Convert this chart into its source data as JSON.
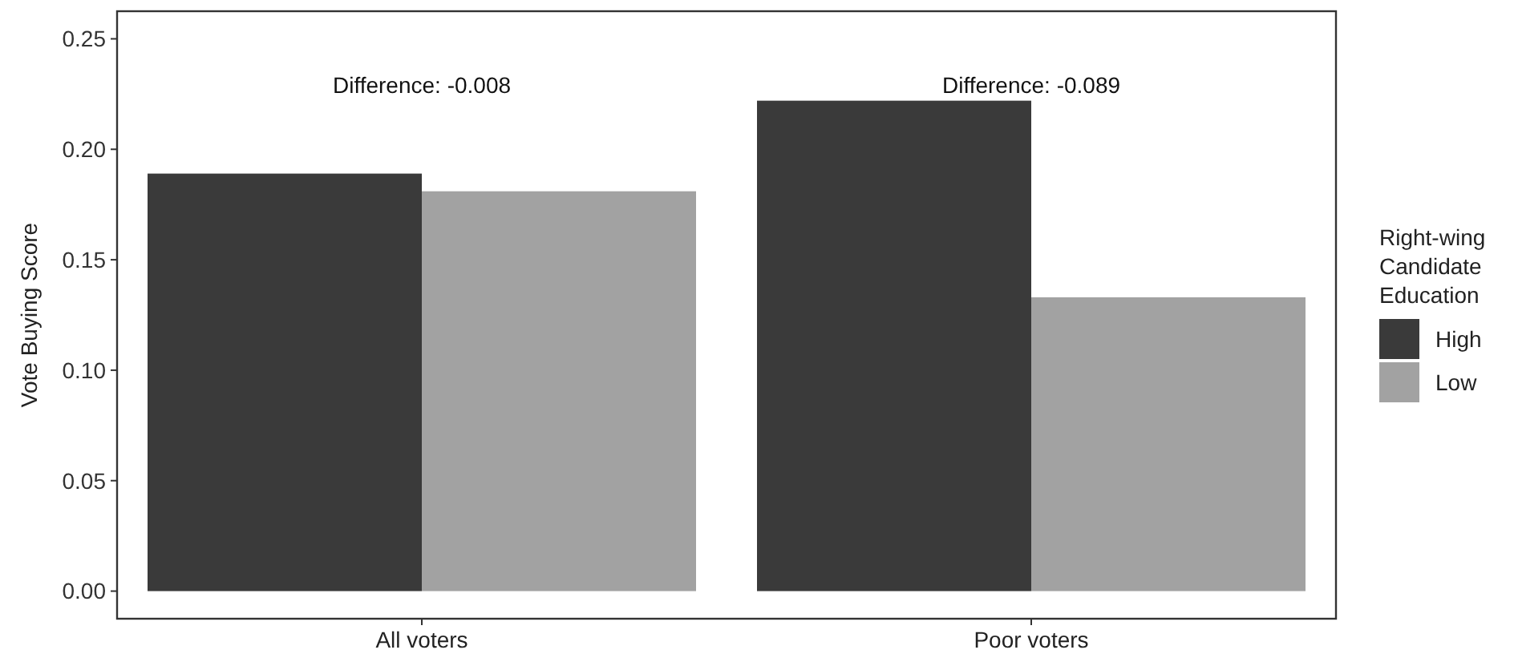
{
  "chart_data": {
    "type": "bar",
    "ylabel": "Vote Buying Score",
    "legend_title": "Right-wing\nCandidate\nEducation",
    "categories": [
      "All voters",
      "Poor voters"
    ],
    "series": [
      {
        "name": "High",
        "color": "#3a3a3a",
        "values": [
          0.189,
          0.222
        ]
      },
      {
        "name": "Low",
        "color": "#a2a2a2",
        "values": [
          0.181,
          0.133
        ]
      }
    ],
    "ylim": [
      -0.0125,
      0.2625
    ],
    "yticks": [
      {
        "value": 0,
        "label": "0.00"
      },
      {
        "value": 0.05,
        "label": "0.05"
      },
      {
        "value": 0.1,
        "label": "0.10"
      },
      {
        "value": 0.15,
        "label": "0.15"
      },
      {
        "value": 0.2,
        "label": "0.20"
      },
      {
        "value": 0.25,
        "label": "0.25"
      }
    ],
    "annotations": [
      "Difference: -0.008",
      "Difference: -0.089"
    ],
    "grid": false,
    "legend": "right"
  }
}
